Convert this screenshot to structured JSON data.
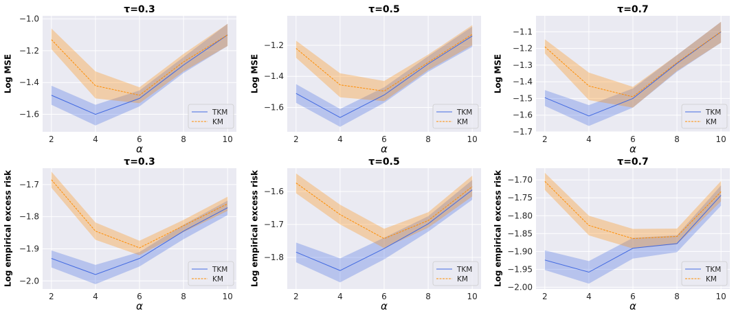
{
  "colors": {
    "TKM": "#4169e1",
    "KM": "#ff8c00",
    "plot_bg": "#eaeaf2",
    "grid": "#ffffff"
  },
  "chart_data": [
    {
      "type": "line",
      "title": "τ=0.3",
      "xlabel": "α",
      "ylabel": "Log MSE",
      "x": [
        2,
        4,
        6,
        8,
        10
      ],
      "xticks": [
        "2",
        "4",
        "6",
        "8",
        "10"
      ],
      "xlim": [
        1.6,
        10.4
      ],
      "ylim": [
        -1.71,
        -0.98
      ],
      "yticks": [
        -1.6,
        -1.4,
        -1.2,
        -1.0
      ],
      "ytick_labels": [
        "−1.6",
        "−1.4",
        "−1.2",
        "−1.0"
      ],
      "grid": true,
      "legend": "bottom-right",
      "series": [
        {
          "name": "TKM",
          "values": [
            -1.48,
            -1.6,
            -1.5,
            -1.29,
            -1.1
          ],
          "lower": [
            -1.54,
            -1.67,
            -1.55,
            -1.34,
            -1.17
          ],
          "upper": [
            -1.42,
            -1.54,
            -1.45,
            -1.24,
            -1.03
          ]
        },
        {
          "name": "KM",
          "values": [
            -1.13,
            -1.42,
            -1.48,
            -1.27,
            -1.1
          ],
          "lower": [
            -1.19,
            -1.5,
            -1.53,
            -1.33,
            -1.17
          ],
          "upper": [
            -1.06,
            -1.33,
            -1.43,
            -1.22,
            -1.03
          ]
        }
      ]
    },
    {
      "type": "line",
      "title": "τ=0.5",
      "xlabel": "α",
      "ylabel": "Log MSE",
      "x": [
        2,
        4,
        6,
        8,
        10
      ],
      "xticks": [
        "2",
        "4",
        "6",
        "8",
        "10"
      ],
      "xlim": [
        1.6,
        10.4
      ],
      "ylim": [
        -1.757,
        -1.01
      ],
      "yticks": [
        -1.6,
        -1.4,
        -1.2
      ],
      "ytick_labels": [
        "−1.6",
        "−1.4",
        "−1.2"
      ],
      "grid": true,
      "legend": "bottom-right",
      "series": [
        {
          "name": "TKM",
          "values": [
            -1.51,
            -1.665,
            -1.52,
            -1.32,
            -1.14
          ],
          "lower": [
            -1.57,
            -1.725,
            -1.57,
            -1.37,
            -1.21
          ],
          "upper": [
            -1.45,
            -1.61,
            -1.47,
            -1.27,
            -1.08
          ]
        },
        {
          "name": "KM",
          "values": [
            -1.22,
            -1.455,
            -1.495,
            -1.31,
            -1.13
          ],
          "lower": [
            -1.28,
            -1.535,
            -1.56,
            -1.36,
            -1.2
          ],
          "upper": [
            -1.17,
            -1.38,
            -1.43,
            -1.26,
            -1.07
          ]
        }
      ]
    },
    {
      "type": "line",
      "title": "τ=0.7",
      "xlabel": "α",
      "ylabel": "Log MSE",
      "x": [
        2,
        4,
        6,
        8,
        10
      ],
      "xticks": [
        "2",
        "4",
        "6",
        "8",
        "10"
      ],
      "xlim": [
        1.6,
        10.4
      ],
      "ylim": [
        -1.7,
        -1.004
      ],
      "yticks": [
        -1.7,
        -1.6,
        -1.5,
        -1.4,
        -1.3,
        -1.2,
        -1.1
      ],
      "ytick_labels": [
        "−1.7",
        "−1.6",
        "−1.5",
        "−1.4",
        "−1.3",
        "−1.2",
        "−1.1"
      ],
      "grid": true,
      "legend": "bottom-right",
      "series": [
        {
          "name": "TKM",
          "values": [
            -1.495,
            -1.605,
            -1.5,
            -1.29,
            -1.1
          ],
          "lower": [
            -1.545,
            -1.665,
            -1.555,
            -1.34,
            -1.165
          ],
          "upper": [
            -1.45,
            -1.54,
            -1.44,
            -1.24,
            -1.04
          ]
        },
        {
          "name": "KM",
          "values": [
            -1.19,
            -1.425,
            -1.49,
            -1.285,
            -1.1
          ],
          "lower": [
            -1.23,
            -1.51,
            -1.555,
            -1.335,
            -1.165
          ],
          "upper": [
            -1.145,
            -1.345,
            -1.43,
            -1.24,
            -1.04
          ]
        }
      ]
    },
    {
      "type": "line",
      "title": "τ=0.3",
      "xlabel": "α",
      "ylabel": "Log empirical excess risk",
      "x": [
        2,
        4,
        6,
        8,
        10
      ],
      "xticks": [
        "2",
        "4",
        "6",
        "8",
        "10"
      ],
      "xlim": [
        1.6,
        10.4
      ],
      "ylim": [
        -2.025,
        -1.649
      ],
      "yticks": [
        -2.0,
        -1.9,
        -1.8,
        -1.7
      ],
      "ytick_labels": [
        "−2.0",
        "−1.9",
        "−1.8",
        "−1.7"
      ],
      "grid": true,
      "legend": "bottom-right",
      "series": [
        {
          "name": "TKM",
          "values": [
            -1.93,
            -1.98,
            -1.93,
            -1.845,
            -1.772
          ],
          "lower": [
            -1.958,
            -2.01,
            -1.955,
            -1.87,
            -1.795
          ],
          "upper": [
            -1.905,
            -1.95,
            -1.91,
            -1.825,
            -1.75
          ]
        },
        {
          "name": "KM",
          "values": [
            -1.685,
            -1.845,
            -1.897,
            -1.828,
            -1.76
          ],
          "lower": [
            -1.71,
            -1.872,
            -1.92,
            -1.848,
            -1.782
          ],
          "upper": [
            -1.66,
            -1.818,
            -1.875,
            -1.81,
            -1.738
          ]
        }
      ]
    },
    {
      "type": "line",
      "title": "τ=0.5",
      "xlabel": "α",
      "ylabel": "Log empirical excess risk",
      "x": [
        2,
        4,
        6,
        8,
        10
      ],
      "xticks": [
        "2",
        "4",
        "6",
        "8",
        "10"
      ],
      "xlim": [
        1.6,
        10.4
      ],
      "ylim": [
        -1.896,
        -1.529
      ],
      "yticks": [
        -1.8,
        -1.7,
        -1.6
      ],
      "ytick_labels": [
        "−1.8",
        "−1.7",
        "−1.6"
      ],
      "grid": true,
      "legend": "bottom-right",
      "series": [
        {
          "name": "TKM",
          "values": [
            -1.784,
            -1.84,
            -1.773,
            -1.698,
            -1.595
          ],
          "lower": [
            -1.815,
            -1.876,
            -1.806,
            -1.722,
            -1.625
          ],
          "upper": [
            -1.755,
            -1.803,
            -1.74,
            -1.675,
            -1.565
          ]
        },
        {
          "name": "KM",
          "values": [
            -1.574,
            -1.67,
            -1.743,
            -1.688,
            -1.585
          ],
          "lower": [
            -1.605,
            -1.7,
            -1.772,
            -1.71,
            -1.615
          ],
          "upper": [
            -1.545,
            -1.64,
            -1.713,
            -1.663,
            -1.552
          ]
        }
      ]
    },
    {
      "type": "line",
      "title": "τ=0.7",
      "xlabel": "α",
      "ylabel": "Log empirical excess risk",
      "x": [
        2,
        4,
        6,
        8,
        10
      ],
      "xticks": [
        "2",
        "4",
        "6",
        "8",
        "10"
      ],
      "xlim": [
        1.6,
        10.4
      ],
      "ylim": [
        -2.005,
        -1.667
      ],
      "yticks": [
        -2.0,
        -1.95,
        -1.9,
        -1.85,
        -1.8,
        -1.75,
        -1.7
      ],
      "ytick_labels": [
        "−2.00",
        "−1.95",
        "−1.90",
        "−1.85",
        "−1.80",
        "−1.75",
        "−1.70"
      ],
      "grid": true,
      "legend": "bottom-right",
      "series": [
        {
          "name": "TKM",
          "values": [
            -1.924,
            -1.958,
            -1.891,
            -1.878,
            -1.743
          ],
          "lower": [
            -1.952,
            -1.99,
            -1.92,
            -1.902,
            -1.772
          ],
          "upper": [
            -1.897,
            -1.927,
            -1.862,
            -1.855,
            -1.715
          ]
        },
        {
          "name": "KM",
          "values": [
            -1.704,
            -1.827,
            -1.864,
            -1.858,
            -1.733
          ],
          "lower": [
            -1.728,
            -1.855,
            -1.892,
            -1.88,
            -1.76
          ],
          "upper": [
            -1.68,
            -1.8,
            -1.837,
            -1.836,
            -1.703
          ]
        }
      ]
    }
  ]
}
